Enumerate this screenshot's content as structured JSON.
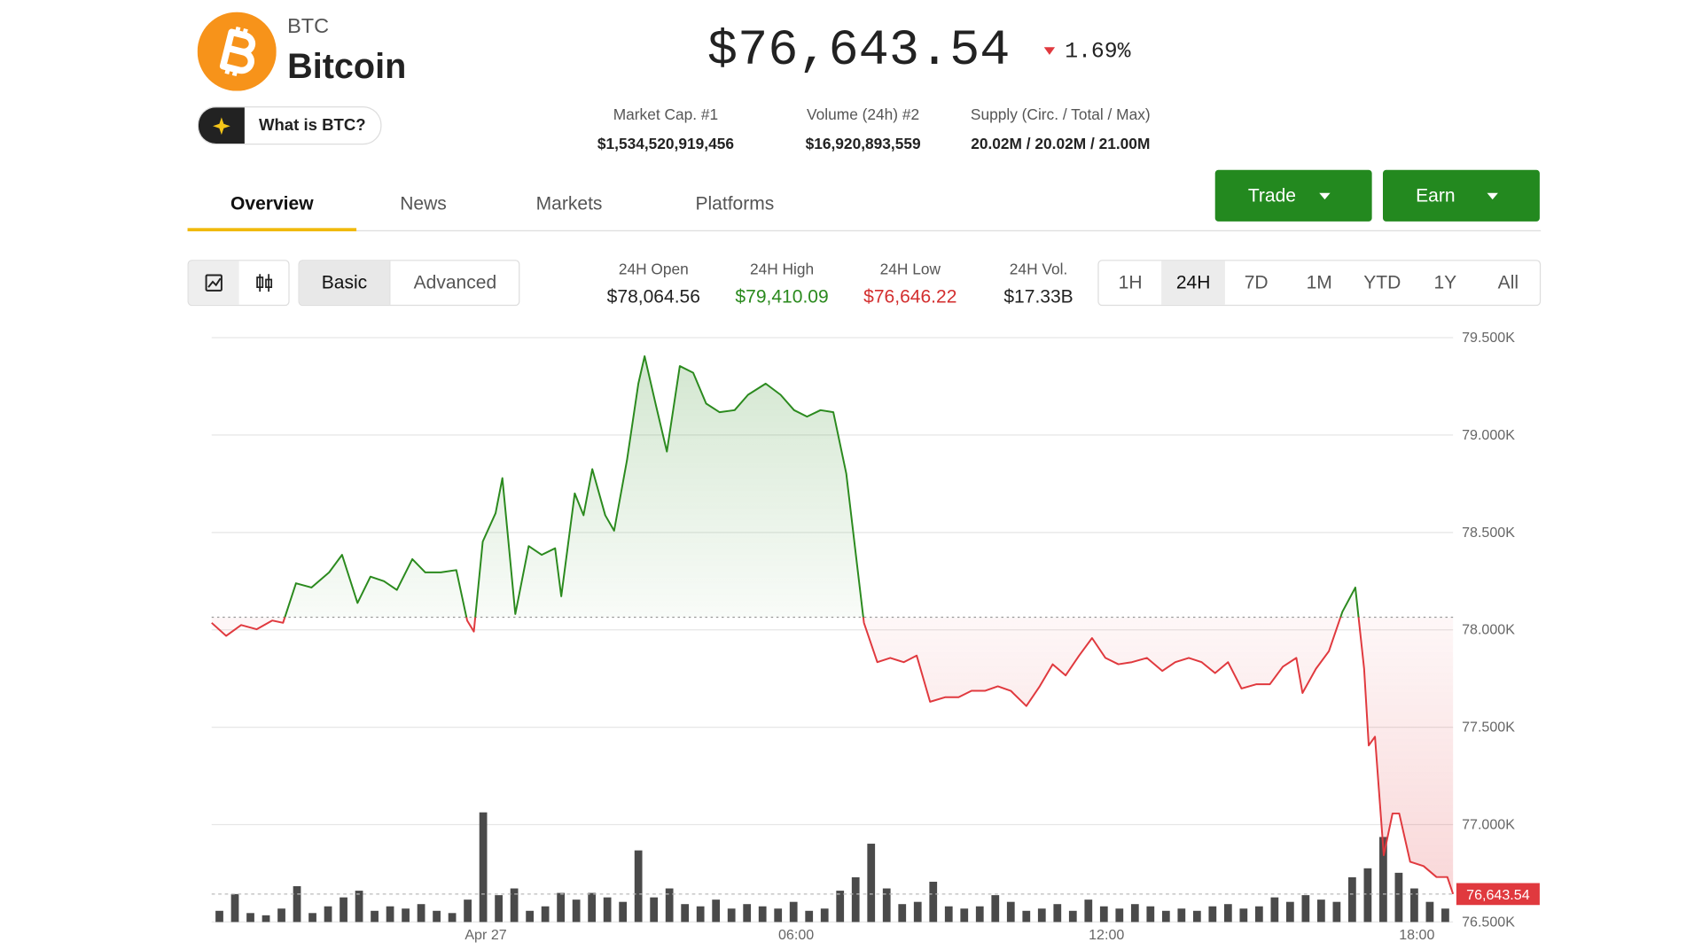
{
  "header": {
    "symbol": "BTC",
    "name": "Bitcoin",
    "price": "$76,643.54",
    "change": "1.69%",
    "what_is": "What is BTC?"
  },
  "market_stats": [
    {
      "label": "Market Cap. #1",
      "value": "$1,534,520,919,456"
    },
    {
      "label": "Volume (24h) #2",
      "value": "$16,920,893,559"
    },
    {
      "label": "Supply (Circ. / Total / Max)",
      "value": "20.02M / 20.02M / 21.00M"
    }
  ],
  "tabs": {
    "items": [
      "Overview",
      "News",
      "Markets",
      "Platforms"
    ],
    "active": 0
  },
  "buttons": [
    "Trade",
    "Earn"
  ],
  "chart_modes": {
    "items": [
      "Basic",
      "Advanced"
    ],
    "active": 0
  },
  "stats_24h": [
    {
      "label": "24H Open",
      "value": "$78,064.56",
      "color": "#222222"
    },
    {
      "label": "24H High",
      "value": "$79,410.09",
      "color": "#2b8a1e"
    },
    {
      "label": "24H Low",
      "value": "$76,646.22",
      "color": "#d32f2f"
    },
    {
      "label": "24H Vol.",
      "value": "$17.33B",
      "color": "#222222"
    }
  ],
  "ranges": {
    "items": [
      "1H",
      "24H",
      "7D",
      "1M",
      "YTD",
      "1Y",
      "All"
    ],
    "active": 1
  },
  "chart_data": {
    "type": "line",
    "x": [
      -5.3,
      -5.02,
      -4.73,
      -4.43,
      -4.13,
      -3.92,
      -3.67,
      -3.37,
      -3.03,
      -2.78,
      -2.48,
      -2.23,
      -1.97,
      -1.72,
      -1.42,
      -1.17,
      -0.87,
      -0.57,
      -0.36,
      -0.23,
      -0.06,
      0.19,
      0.32,
      0.49,
      0.57,
      0.83,
      1.08,
      1.34,
      1.46,
      1.72,
      1.89,
      2.06,
      2.31,
      2.48,
      2.73,
      2.95,
      3.07,
      3.29,
      3.5,
      3.75,
      4.01,
      4.26,
      4.52,
      4.81,
      5.07,
      5.41,
      5.7,
      5.96,
      6.21,
      6.47,
      6.72,
      6.97,
      7.19,
      7.31,
      7.57,
      7.82,
      8.08,
      8.33,
      8.59,
      8.88,
      9.14,
      9.39,
      9.65,
      9.9,
      10.15,
      10.45,
      10.71,
      10.96,
      11.21,
      11.47,
      11.72,
      11.98,
      12.23,
      12.49,
      12.78,
      13.08,
      13.33,
      13.59,
      13.84,
      14.1,
      14.35,
      14.61,
      14.9,
      15.16,
      15.41,
      15.67,
      15.79,
      16.05,
      16.3,
      16.56,
      16.81,
      16.98,
      17.07,
      17.19,
      17.36,
      17.53,
      17.66,
      17.87,
      18.13,
      18.38,
      18.59,
      18.7
    ],
    "values": [
      78036,
      77969,
      78025,
      78003,
      78048,
      78036,
      78239,
      78217,
      78295,
      78385,
      78138,
      78273,
      78250,
      78205,
      78363,
      78295,
      78295,
      78307,
      78048,
      77991,
      78453,
      78599,
      78779,
      78307,
      78081,
      78430,
      78385,
      78419,
      78172,
      78701,
      78588,
      78825,
      78588,
      78509,
      78870,
      79264,
      79405,
      79151,
      78915,
      79354,
      79320,
      79162,
      79117,
      79128,
      79207,
      79264,
      79207,
      79128,
      79095,
      79128,
      79117,
      78802,
      78307,
      78036,
      77834,
      77856,
      77834,
      77868,
      77631,
      77654,
      77654,
      77687,
      77687,
      77710,
      77687,
      77609,
      77710,
      77823,
      77766,
      77868,
      77958,
      77856,
      77823,
      77834,
      77856,
      77789,
      77834,
      77856,
      77834,
      77778,
      77834,
      77699,
      77721,
      77721,
      77811,
      77856,
      77676,
      77800,
      77890,
      78093,
      78217,
      77800,
      77406,
      77451,
      76843,
      77057,
      77057,
      76809,
      76787,
      76731,
      76731,
      76643.54
    ],
    "baseline": 78064.56,
    "up_color": "#2b8a1e",
    "down_color": "#e0393e",
    "last_value_label": "76,643.54",
    "ylim": [
      76500,
      79500
    ],
    "yticks": [
      {
        "value": 79500,
        "label": "79.500K"
      },
      {
        "value": 79000,
        "label": "79.000K"
      },
      {
        "value": 78500,
        "label": "78.500K"
      },
      {
        "value": 78000,
        "label": "78.000K"
      },
      {
        "value": 77500,
        "label": "77.500K"
      },
      {
        "value": 77000,
        "label": "77.000K"
      },
      {
        "value": 76500,
        "label": "76.500K"
      }
    ],
    "xlim": [
      -5.3,
      18.7
    ],
    "xticks": [
      {
        "value": 0,
        "label": "Apr 27"
      },
      {
        "value": 6,
        "label": "06:00"
      },
      {
        "value": 12,
        "label": "12:00"
      },
      {
        "value": 18,
        "label": "18:00"
      }
    ],
    "grid": true,
    "volume": {
      "color": "#4a4a4a",
      "values": [
        10,
        25,
        8,
        6,
        12,
        32,
        8,
        14,
        22,
        28,
        10,
        14,
        12,
        16,
        10,
        8,
        20,
        98,
        24,
        30,
        10,
        14,
        26,
        20,
        26,
        22,
        18,
        64,
        22,
        30,
        16,
        14,
        20,
        12,
        16,
        14,
        12,
        18,
        10,
        12,
        28,
        40,
        70,
        30,
        16,
        18,
        36,
        14,
        12,
        14,
        24,
        18,
        10,
        12,
        16,
        10,
        20,
        14,
        12,
        16,
        14,
        10,
        12,
        10,
        14,
        16,
        12,
        14,
        22,
        18,
        24,
        20,
        18,
        40,
        48,
        76,
        44,
        30,
        18,
        12
      ]
    }
  }
}
